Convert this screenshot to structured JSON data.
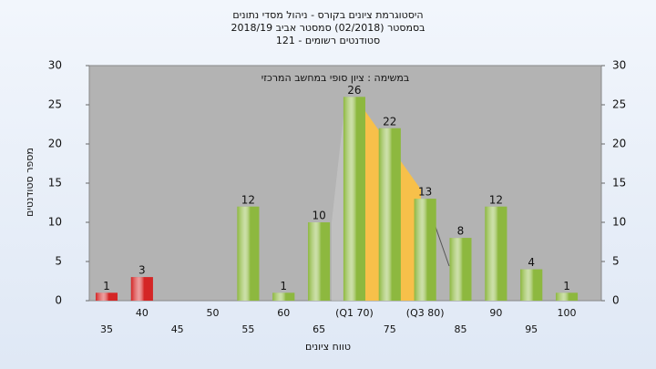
{
  "chart_data": {
    "type": "bar",
    "title": "היסטוגרמת ציונים בקורס - ניהול מסדי נתונים",
    "subtitle": "בסמסטר  (02/2018)  סמסטר אביב 2018/19",
    "subtitle2": "סטודנטים רשומים - 121",
    "annotation": "במשימה : ציון סופי במחשב המרכזי",
    "x_label": "טווח ציונים",
    "y_label": "מספר סטודנטים",
    "categories": [
      "35",
      "40",
      "45",
      "50",
      "55",
      "60",
      "65",
      "(Q1 70)",
      "75",
      "(Q3 80)",
      "85",
      "90",
      "95",
      "100"
    ],
    "values": [
      1,
      3,
      null,
      null,
      12,
      1,
      10,
      26,
      22,
      13,
      8,
      12,
      4,
      1
    ],
    "colors": [
      "#d42525",
      "#d42525",
      "#8db83f",
      "#8db83f",
      "#8db83f",
      "#8db83f",
      "#8db83f",
      "#8db83f",
      "#8db83f",
      "#8db83f",
      "#8db83f",
      "#8db83f",
      "#8db83f",
      "#8db83f"
    ],
    "ylim": [
      0,
      30
    ],
    "yticks": [
      0,
      5,
      10,
      15,
      20,
      25,
      30
    ],
    "y2lim": [
      0,
      30
    ],
    "y2ticks": [
      0,
      5,
      10,
      15,
      20,
      25,
      30
    ],
    "grid": false
  }
}
